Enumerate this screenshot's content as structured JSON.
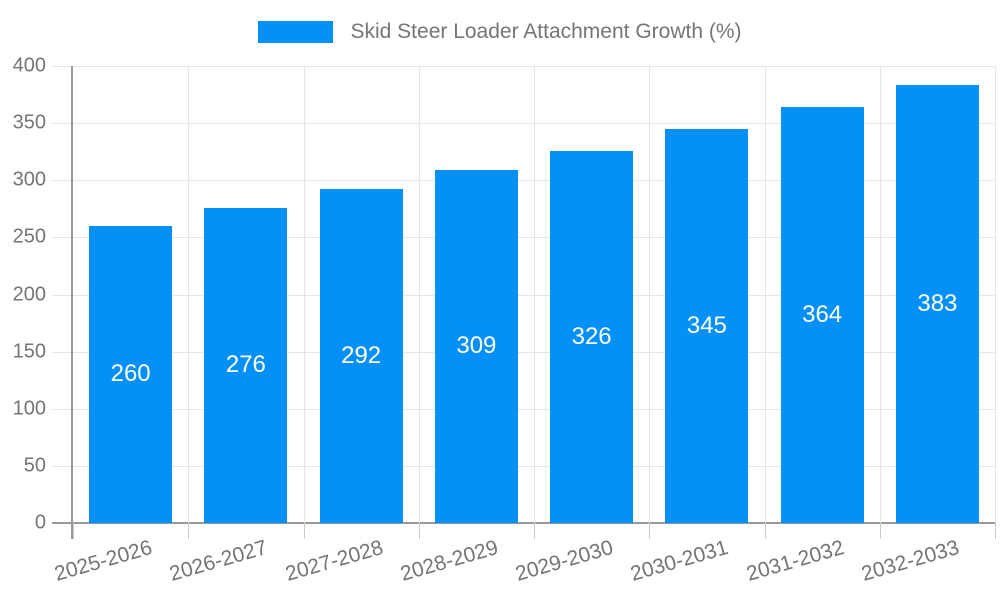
{
  "chart_data": {
    "type": "bar",
    "title": "Skid Steer Loader Attachment Growth (%)",
    "categories": [
      "2025-2026",
      "2026-2027",
      "2027-2028",
      "2028-2029",
      "2029-2030",
      "2030-2031",
      "2031-2032",
      "2032-2033"
    ],
    "values": [
      260,
      276,
      292,
      309,
      326,
      345,
      364,
      383
    ],
    "xlabel": "",
    "ylabel": "",
    "ylim": [
      0,
      400
    ],
    "ytick_step": 50,
    "yticks": [
      0,
      50,
      100,
      150,
      200,
      250,
      300,
      350,
      400
    ],
    "grid": true,
    "legend_position": "top",
    "x_label_rotation_deg": -16,
    "value_labels_inside_bars": true,
    "colors": {
      "bar": "#0590F8",
      "grid": "#E6E6E6",
      "axis": "#999999",
      "tick_text": "#757575",
      "value_label": "#FFFFFF",
      "background": "#FFFFFF"
    }
  },
  "legend": {
    "label": "Skid Steer Loader Attachment Growth (%)"
  }
}
